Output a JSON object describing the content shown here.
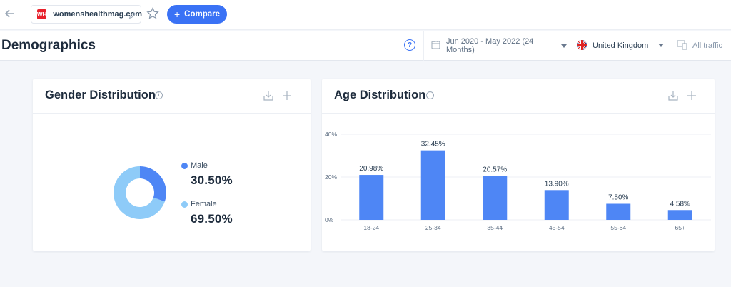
{
  "topbar": {
    "site": "womenshealthmag.com",
    "favicon_text": "WH",
    "compare_label": "Compare"
  },
  "header": {
    "title": "Demographics",
    "help": "?",
    "date_range": "Jun 2020 - May 2022 (24 Months)",
    "country": "United Kingdom",
    "traffic": "All traffic"
  },
  "gender": {
    "title": "Gender Distribution",
    "male_label": "Male",
    "male_value": "30.50%",
    "female_label": "Female",
    "female_value": "69.50%"
  },
  "age": {
    "title": "Age Distribution"
  },
  "colors": {
    "accent": "#3a72f5",
    "male": "#4e86f5",
    "female": "#8ecbf8",
    "bar": "#4e86f5"
  },
  "chart_data": [
    {
      "type": "pie",
      "title": "Gender Distribution",
      "categories": [
        "Male",
        "Female"
      ],
      "values": [
        30.5,
        69.5
      ]
    },
    {
      "type": "bar",
      "title": "Age Distribution",
      "categories": [
        "18-24",
        "25-34",
        "35-44",
        "45-54",
        "55-64",
        "65+"
      ],
      "values": [
        20.98,
        32.45,
        20.57,
        13.9,
        7.5,
        4.58
      ],
      "value_labels": [
        "20.98%",
        "32.45%",
        "20.57%",
        "13.90%",
        "7.50%",
        "4.58%"
      ],
      "yticks": [
        "0%",
        "20%",
        "40%"
      ],
      "ylim": [
        0,
        40
      ],
      "grid": true
    }
  ]
}
